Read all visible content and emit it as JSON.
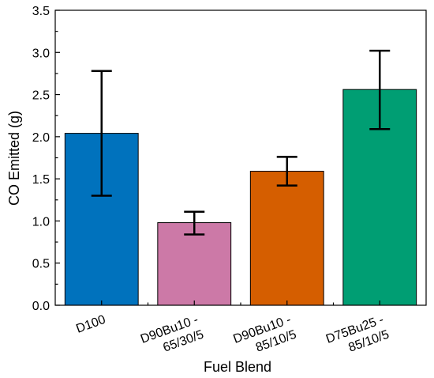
{
  "chart_data": {
    "type": "bar",
    "categories": [
      [
        "D100"
      ],
      [
        "D90Bu10 -",
        "65/30/5"
      ],
      [
        "D90Bu10 -",
        "85/10/5"
      ],
      [
        "D75Bu25 -",
        "85/10/5"
      ]
    ],
    "values": [
      2.04,
      0.98,
      1.59,
      2.56
    ],
    "error_low": [
      1.3,
      0.84,
      1.42,
      2.09
    ],
    "error_high": [
      2.78,
      1.11,
      1.76,
      3.02
    ],
    "colors": [
      "#0072bd",
      "#cc79a7",
      "#d55e00",
      "#009e73"
    ],
    "xlabel": "Fuel Blend",
    "ylabel": "CO Emitted (g)",
    "ylim": [
      0,
      3.5
    ],
    "yticks": [
      "0.0",
      "0.5",
      "1.0",
      "1.5",
      "2.0",
      "2.5",
      "3.0",
      "3.5"
    ],
    "grid": false,
    "legend": "none"
  }
}
